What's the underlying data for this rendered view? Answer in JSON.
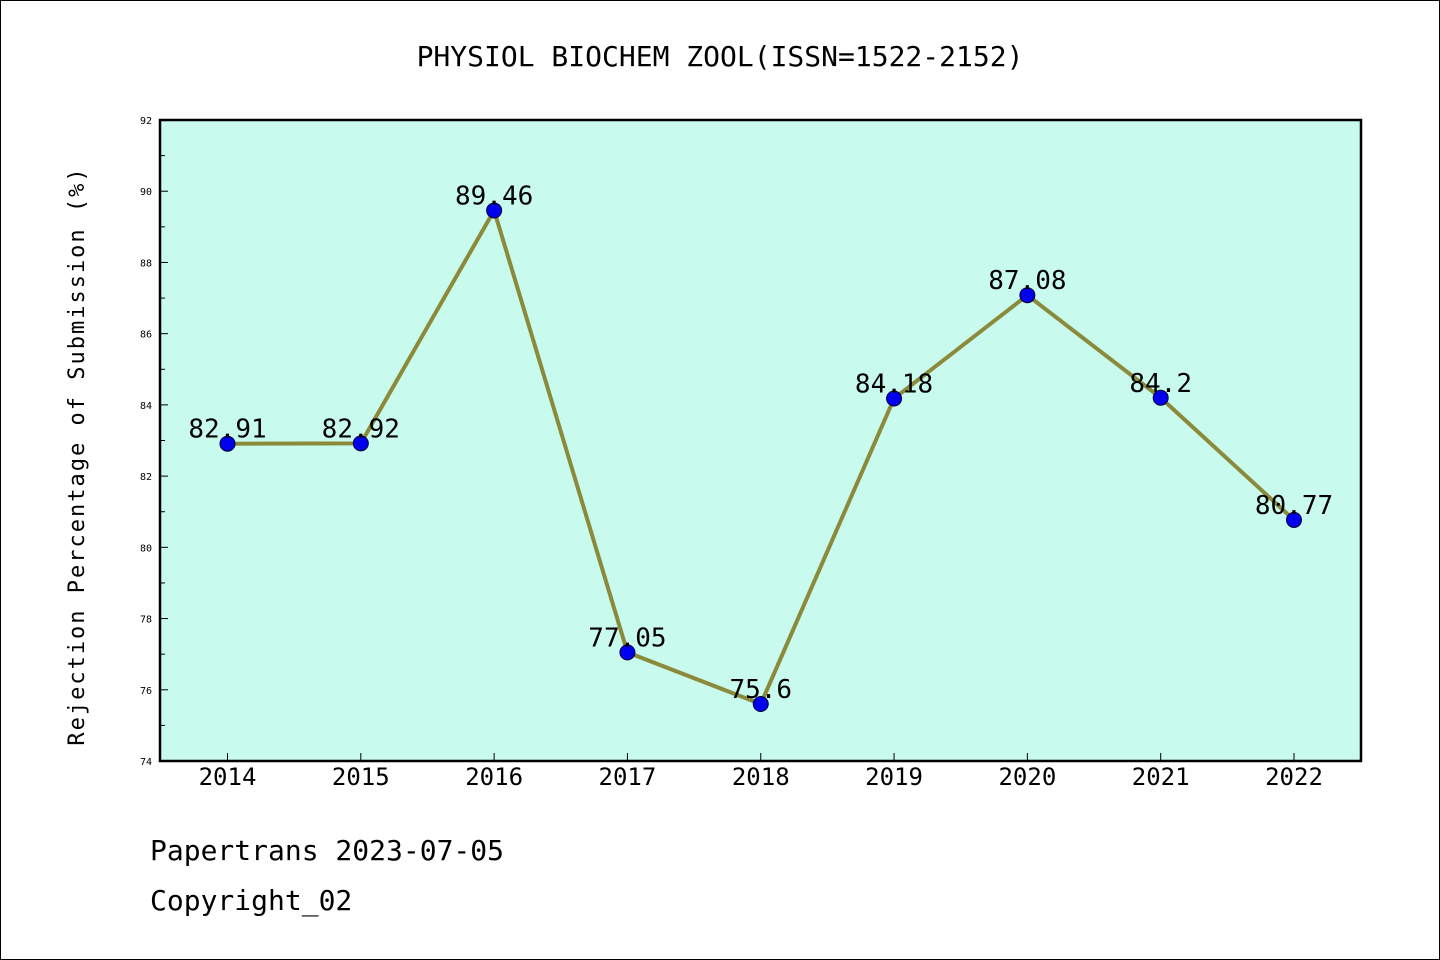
{
  "chart_data": {
    "type": "line",
    "title": "PHYSIOL BIOCHEM ZOOL(ISSN=1522-2152)",
    "ylabel": "Rejection Percentage of Submission (%)",
    "xlabel": "",
    "categories": [
      "2014",
      "2015",
      "2016",
      "2017",
      "2018",
      "2019",
      "2020",
      "2021",
      "2022"
    ],
    "series": [
      {
        "values": [
          82.91,
          82.92,
          89.46,
          77.05,
          75.6,
          84.18,
          87.08,
          84.2,
          80.77
        ],
        "labels": [
          "82.91",
          "82.92",
          "89.46",
          "77.05",
          "75.6",
          "84.18",
          "87.08",
          "84.2",
          "80.77"
        ]
      }
    ],
    "ylim": [
      74,
      92
    ],
    "yticks": [
      "74",
      "76",
      "78",
      "80",
      "82",
      "84",
      "86",
      "88",
      "90",
      "92"
    ],
    "grid": false,
    "colors": {
      "plot_background": "#c8fbee",
      "line": "#8b8a3a",
      "marker": "#0000ee"
    }
  },
  "footer": {
    "line1": "Papertrans 2023-07-05",
    "line2": "Copyright_02"
  }
}
